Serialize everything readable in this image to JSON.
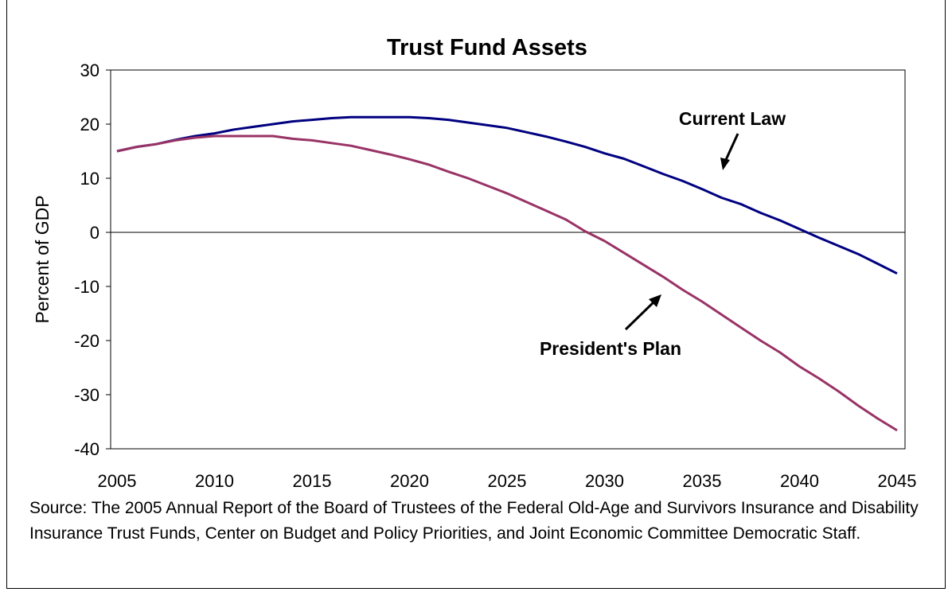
{
  "chart_data": {
    "type": "line",
    "title": "Trust Fund Assets",
    "xlabel": "",
    "ylabel": "Percent of GDP",
    "xlim": [
      2005,
      2045
    ],
    "ylim": [
      -40,
      30
    ],
    "xticks": [
      2005,
      2010,
      2015,
      2020,
      2025,
      2030,
      2035,
      2040,
      2045
    ],
    "yticks": [
      30,
      20,
      10,
      0,
      -10,
      -20,
      -30,
      -40
    ],
    "grid": false,
    "legend": "none",
    "x": [
      2005,
      2006,
      2007,
      2008,
      2009,
      2010,
      2011,
      2012,
      2013,
      2014,
      2015,
      2016,
      2017,
      2018,
      2019,
      2020,
      2021,
      2022,
      2023,
      2024,
      2025,
      2026,
      2027,
      2028,
      2029,
      2030,
      2031,
      2032,
      2033,
      2034,
      2035,
      2036,
      2037,
      2038,
      2039,
      2040,
      2041,
      2042,
      2043,
      2044,
      2045
    ],
    "series": [
      {
        "name": "Current Law",
        "color": "#000080",
        "values": [
          15.0,
          15.8,
          16.3,
          17.1,
          17.8,
          18.3,
          19.0,
          19.5,
          20.0,
          20.5,
          20.8,
          21.1,
          21.3,
          21.3,
          21.3,
          21.3,
          21.1,
          20.8,
          20.3,
          19.8,
          19.3,
          18.5,
          17.7,
          16.8,
          15.8,
          14.6,
          13.6,
          12.2,
          10.8,
          9.5,
          8.0,
          6.4,
          5.2,
          3.6,
          2.2,
          0.6,
          -1.0,
          -2.5,
          -4.0,
          -5.8,
          -7.6
        ]
      },
      {
        "name": "President's Plan",
        "color": "#993366",
        "values": [
          15.0,
          15.8,
          16.3,
          17.0,
          17.5,
          17.8,
          17.8,
          17.8,
          17.8,
          17.3,
          17.0,
          16.5,
          16.0,
          15.2,
          14.4,
          13.5,
          12.5,
          11.2,
          10.0,
          8.6,
          7.2,
          5.6,
          4.0,
          2.4,
          0.2,
          -1.6,
          -3.8,
          -6.0,
          -8.2,
          -10.6,
          -12.8,
          -15.2,
          -17.6,
          -20.0,
          -22.2,
          -24.8,
          -27.0,
          -29.4,
          -32.0,
          -34.4,
          -36.6
        ]
      }
    ],
    "annotations": [
      {
        "text": "Current Law",
        "series": "Current Law"
      },
      {
        "text": "President's Plan",
        "series": "President's Plan"
      }
    ]
  },
  "source_text": "Source: The 2005 Annual Report of the Board of Trustees of the Federal Old-Age and Survivors Insurance and Disability Insurance Trust Funds, Center on Budget and Policy Priorities, and Joint Economic Committee Democratic Staff."
}
